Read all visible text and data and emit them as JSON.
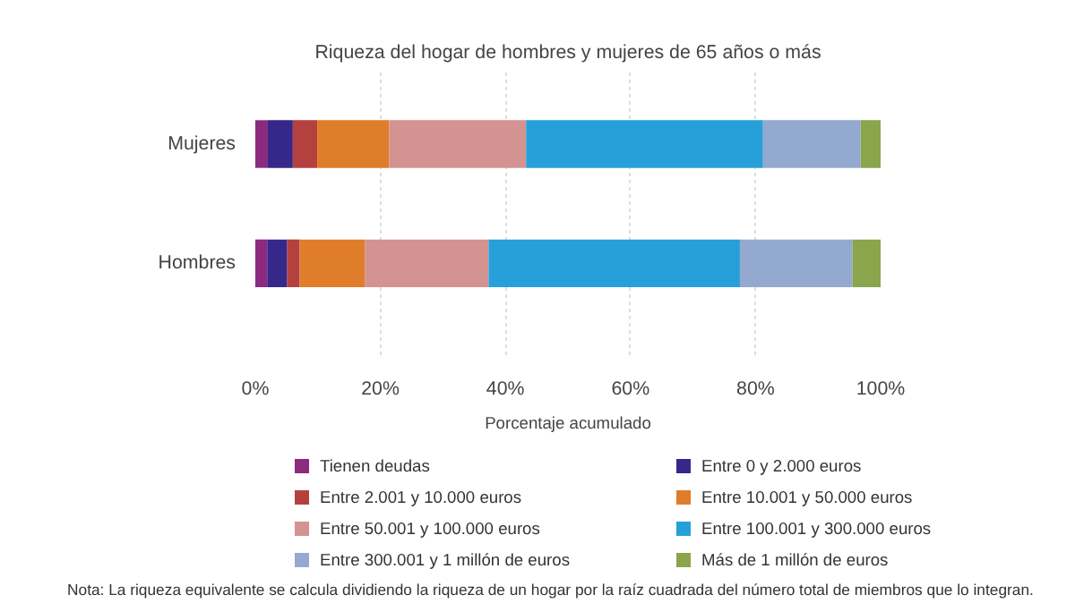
{
  "chart_data": {
    "type": "bar",
    "orientation": "horizontal",
    "stacked": true,
    "title": "Riqueza del hogar de hombres y mujeres de 65 años o más",
    "xlabel": "Porcentaje acumulado",
    "categories": [
      "Mujeres",
      "Hombres"
    ],
    "series": [
      {
        "name": "Tienen deudas",
        "color": "#8b2a7e",
        "values": [
          2.0,
          1.9
        ]
      },
      {
        "name": "Entre 0 y 2.000 euros",
        "color": "#35288a",
        "values": [
          4.0,
          3.2
        ]
      },
      {
        "name": "Entre 2.001 y 10.000 euros",
        "color": "#b5413f",
        "values": [
          3.9,
          2.0
        ]
      },
      {
        "name": "Entre 10.001 y 50.000 euros",
        "color": "#e07d2a",
        "values": [
          11.5,
          10.4
        ]
      },
      {
        "name": "Entre 50.001 y 100.000 euros",
        "color": "#d39390",
        "values": [
          21.9,
          19.8
        ]
      },
      {
        "name": "Entre 100.001 y 300.000 euros",
        "color": "#27a0da",
        "values": [
          37.9,
          40.2
        ]
      },
      {
        "name": "Entre 300.001 y 1 millón de euros",
        "color": "#94a9cf",
        "values": [
          15.6,
          18.0
        ]
      },
      {
        "name": "Más de 1 millón de euros",
        "color": "#8aa54b",
        "values": [
          3.2,
          4.5
        ]
      }
    ],
    "xlim": [
      0,
      100
    ],
    "xticks": [
      {
        "value": 0,
        "label": "0%"
      },
      {
        "value": 20,
        "label": "20%"
      },
      {
        "value": 40,
        "label": "40%"
      },
      {
        "value": 60,
        "label": "60%"
      },
      {
        "value": 80,
        "label": "80%"
      },
      {
        "value": 100,
        "label": "100%"
      }
    ],
    "grid": "x",
    "legend": "bottom",
    "annotations": [
      "Nota: La riqueza equivalente se calcula dividiendo la riqueza de un hogar por la raíz cuadrada del número total de miembros que lo integran."
    ]
  }
}
